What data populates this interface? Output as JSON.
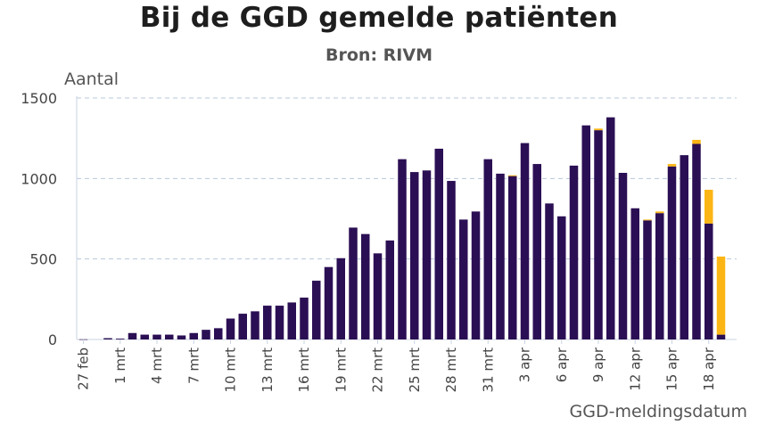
{
  "chart_data": {
    "type": "bar",
    "title": "Bij de GGD gemelde patiënten",
    "subtitle": "Bron: RIVM",
    "ylabel": "Aantal",
    "xlabel": "GGD-meldingsdatum",
    "ylim": [
      0,
      1500
    ],
    "yticks": [
      0,
      500,
      1000,
      1500
    ],
    "grid": true,
    "categories": [
      "27 feb",
      "28 feb",
      "29 feb",
      "1 mrt",
      "2 mrt",
      "3 mrt",
      "4 mrt",
      "5 mrt",
      "6 mrt",
      "7 mrt",
      "8 mrt",
      "9 mrt",
      "10 mrt",
      "11 mrt",
      "12 mrt",
      "13 mrt",
      "14 mrt",
      "15 mrt",
      "16 mrt",
      "17 mrt",
      "18 mrt",
      "19 mrt",
      "20 mrt",
      "21 mrt",
      "22 mrt",
      "23 mrt",
      "24 mrt",
      "25 mrt",
      "26 mrt",
      "27 mrt",
      "28 mrt",
      "29 mrt",
      "30 mrt",
      "31 mrt",
      "1 apr",
      "2 apr",
      "3 apr",
      "4 apr",
      "5 apr",
      "6 apr",
      "7 apr",
      "8 apr",
      "9 apr",
      "10 apr",
      "11 apr",
      "12 apr",
      "13 apr",
      "14 apr",
      "15 apr",
      "16 apr",
      "17 apr",
      "18 apr",
      "19 apr"
    ],
    "tick_labels": [
      "27 feb",
      "1 mrt",
      "4 mrt",
      "7 mrt",
      "10 mrt",
      "13 mrt",
      "16 mrt",
      "19 mrt",
      "22 mrt",
      "25 mrt",
      "28 mrt",
      "31 mrt",
      "3 apr",
      "6 apr",
      "9 apr",
      "12 apr",
      "15 apr",
      "18 apr"
    ],
    "series": [
      {
        "color": "#2b0f54",
        "values": [
          1,
          0,
          8,
          5,
          40,
          30,
          30,
          30,
          25,
          40,
          60,
          70,
          130,
          160,
          175,
          210,
          210,
          230,
          260,
          365,
          450,
          505,
          695,
          655,
          535,
          615,
          1120,
          1040,
          1050,
          1185,
          985,
          745,
          795,
          1120,
          1030,
          1015,
          1220,
          1090,
          845,
          765,
          1080,
          1330,
          1300,
          1380,
          1035,
          815,
          740,
          785,
          1075,
          1145,
          1215,
          720,
          30
        ]
      },
      {
        "color": "#fbb615",
        "values": [
          0,
          0,
          0,
          0,
          0,
          0,
          0,
          0,
          0,
          0,
          0,
          0,
          0,
          0,
          0,
          0,
          0,
          0,
          0,
          0,
          0,
          0,
          0,
          0,
          0,
          0,
          0,
          0,
          0,
          0,
          0,
          0,
          0,
          0,
          0,
          5,
          0,
          0,
          0,
          0,
          0,
          0,
          10,
          0,
          0,
          0,
          5,
          10,
          15,
          0,
          25,
          210,
          485
        ]
      }
    ]
  }
}
